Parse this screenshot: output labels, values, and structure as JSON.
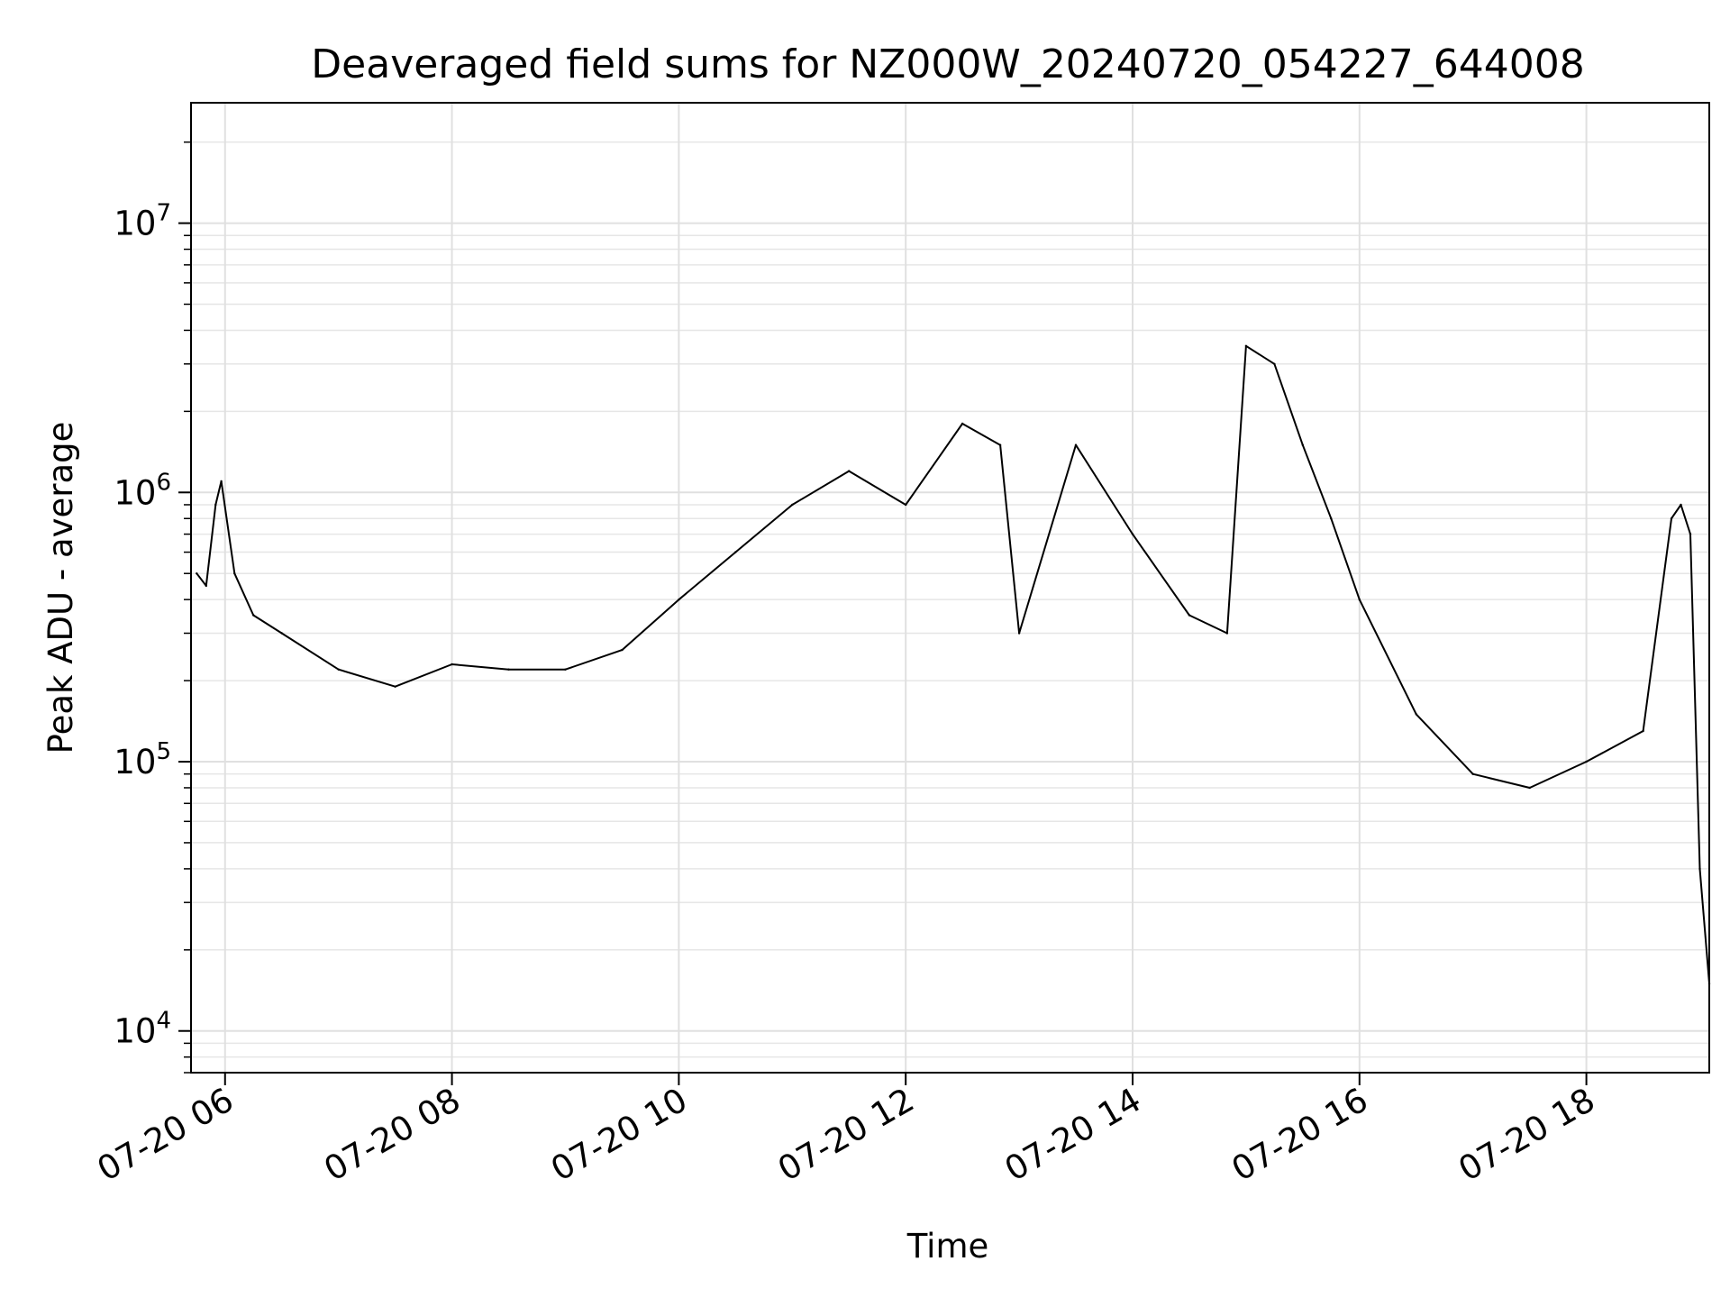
{
  "chart_data": {
    "type": "line",
    "title": "Deaveraged field sums for NZ000W_20240720_054227_644008",
    "xlabel": "Time",
    "ylabel": "Peak ADU - average",
    "yscale": "log",
    "ylim": [
      7000,
      28000000
    ],
    "xlim": [
      "2024-07-20 05:42",
      "2024-07-20 19:05"
    ],
    "grid": true,
    "x_ticks": [
      "2024-07-20 06:00",
      "2024-07-20 08:00",
      "2024-07-20 10:00",
      "2024-07-20 12:00",
      "2024-07-20 14:00",
      "2024-07-20 16:00",
      "2024-07-20 18:00"
    ],
    "x_tick_labels": [
      "07-20 06",
      "07-20 08",
      "07-20 10",
      "07-20 12",
      "07-20 14",
      "07-20 16",
      "07-20 18"
    ],
    "y_ticks": [
      10000,
      100000,
      1000000,
      10000000
    ],
    "y_tick_labels": [
      {
        "base": "10",
        "exp": "4"
      },
      {
        "base": "10",
        "exp": "5"
      },
      {
        "base": "10",
        "exp": "6"
      },
      {
        "base": "10",
        "exp": "7"
      }
    ],
    "series": [
      {
        "color": "#000000",
        "x": [
          "2024-07-20 05:45",
          "2024-07-20 05:50",
          "2024-07-20 05:55",
          "2024-07-20 05:58",
          "2024-07-20 06:05",
          "2024-07-20 06:15",
          "2024-07-20 06:30",
          "2024-07-20 07:00",
          "2024-07-20 07:30",
          "2024-07-20 08:00",
          "2024-07-20 08:30",
          "2024-07-20 09:00",
          "2024-07-20 09:30",
          "2024-07-20 10:00",
          "2024-07-20 10:30",
          "2024-07-20 11:00",
          "2024-07-20 11:30",
          "2024-07-20 12:00",
          "2024-07-20 12:30",
          "2024-07-20 12:50",
          "2024-07-20 13:00",
          "2024-07-20 13:30",
          "2024-07-20 14:00",
          "2024-07-20 14:30",
          "2024-07-20 14:50",
          "2024-07-20 15:00",
          "2024-07-20 15:15",
          "2024-07-20 15:30",
          "2024-07-20 15:45",
          "2024-07-20 16:00",
          "2024-07-20 16:30",
          "2024-07-20 17:00",
          "2024-07-20 17:30",
          "2024-07-20 18:00",
          "2024-07-20 18:30",
          "2024-07-20 18:45",
          "2024-07-20 18:50",
          "2024-07-20 18:55",
          "2024-07-20 19:00",
          "2024-07-20 19:05"
        ],
        "y": [
          500000,
          450000,
          900000,
          1100000,
          500000,
          350000,
          300000,
          220000,
          190000,
          230000,
          220000,
          220000,
          260000,
          400000,
          600000,
          900000,
          1200000,
          900000,
          1800000,
          1500000,
          300000,
          1500000,
          700000,
          350000,
          300000,
          3500000,
          3000000,
          1500000,
          800000,
          400000,
          150000,
          90000,
          80000,
          100000,
          130000,
          800000,
          900000,
          700000,
          40000,
          15000
        ]
      }
    ]
  }
}
